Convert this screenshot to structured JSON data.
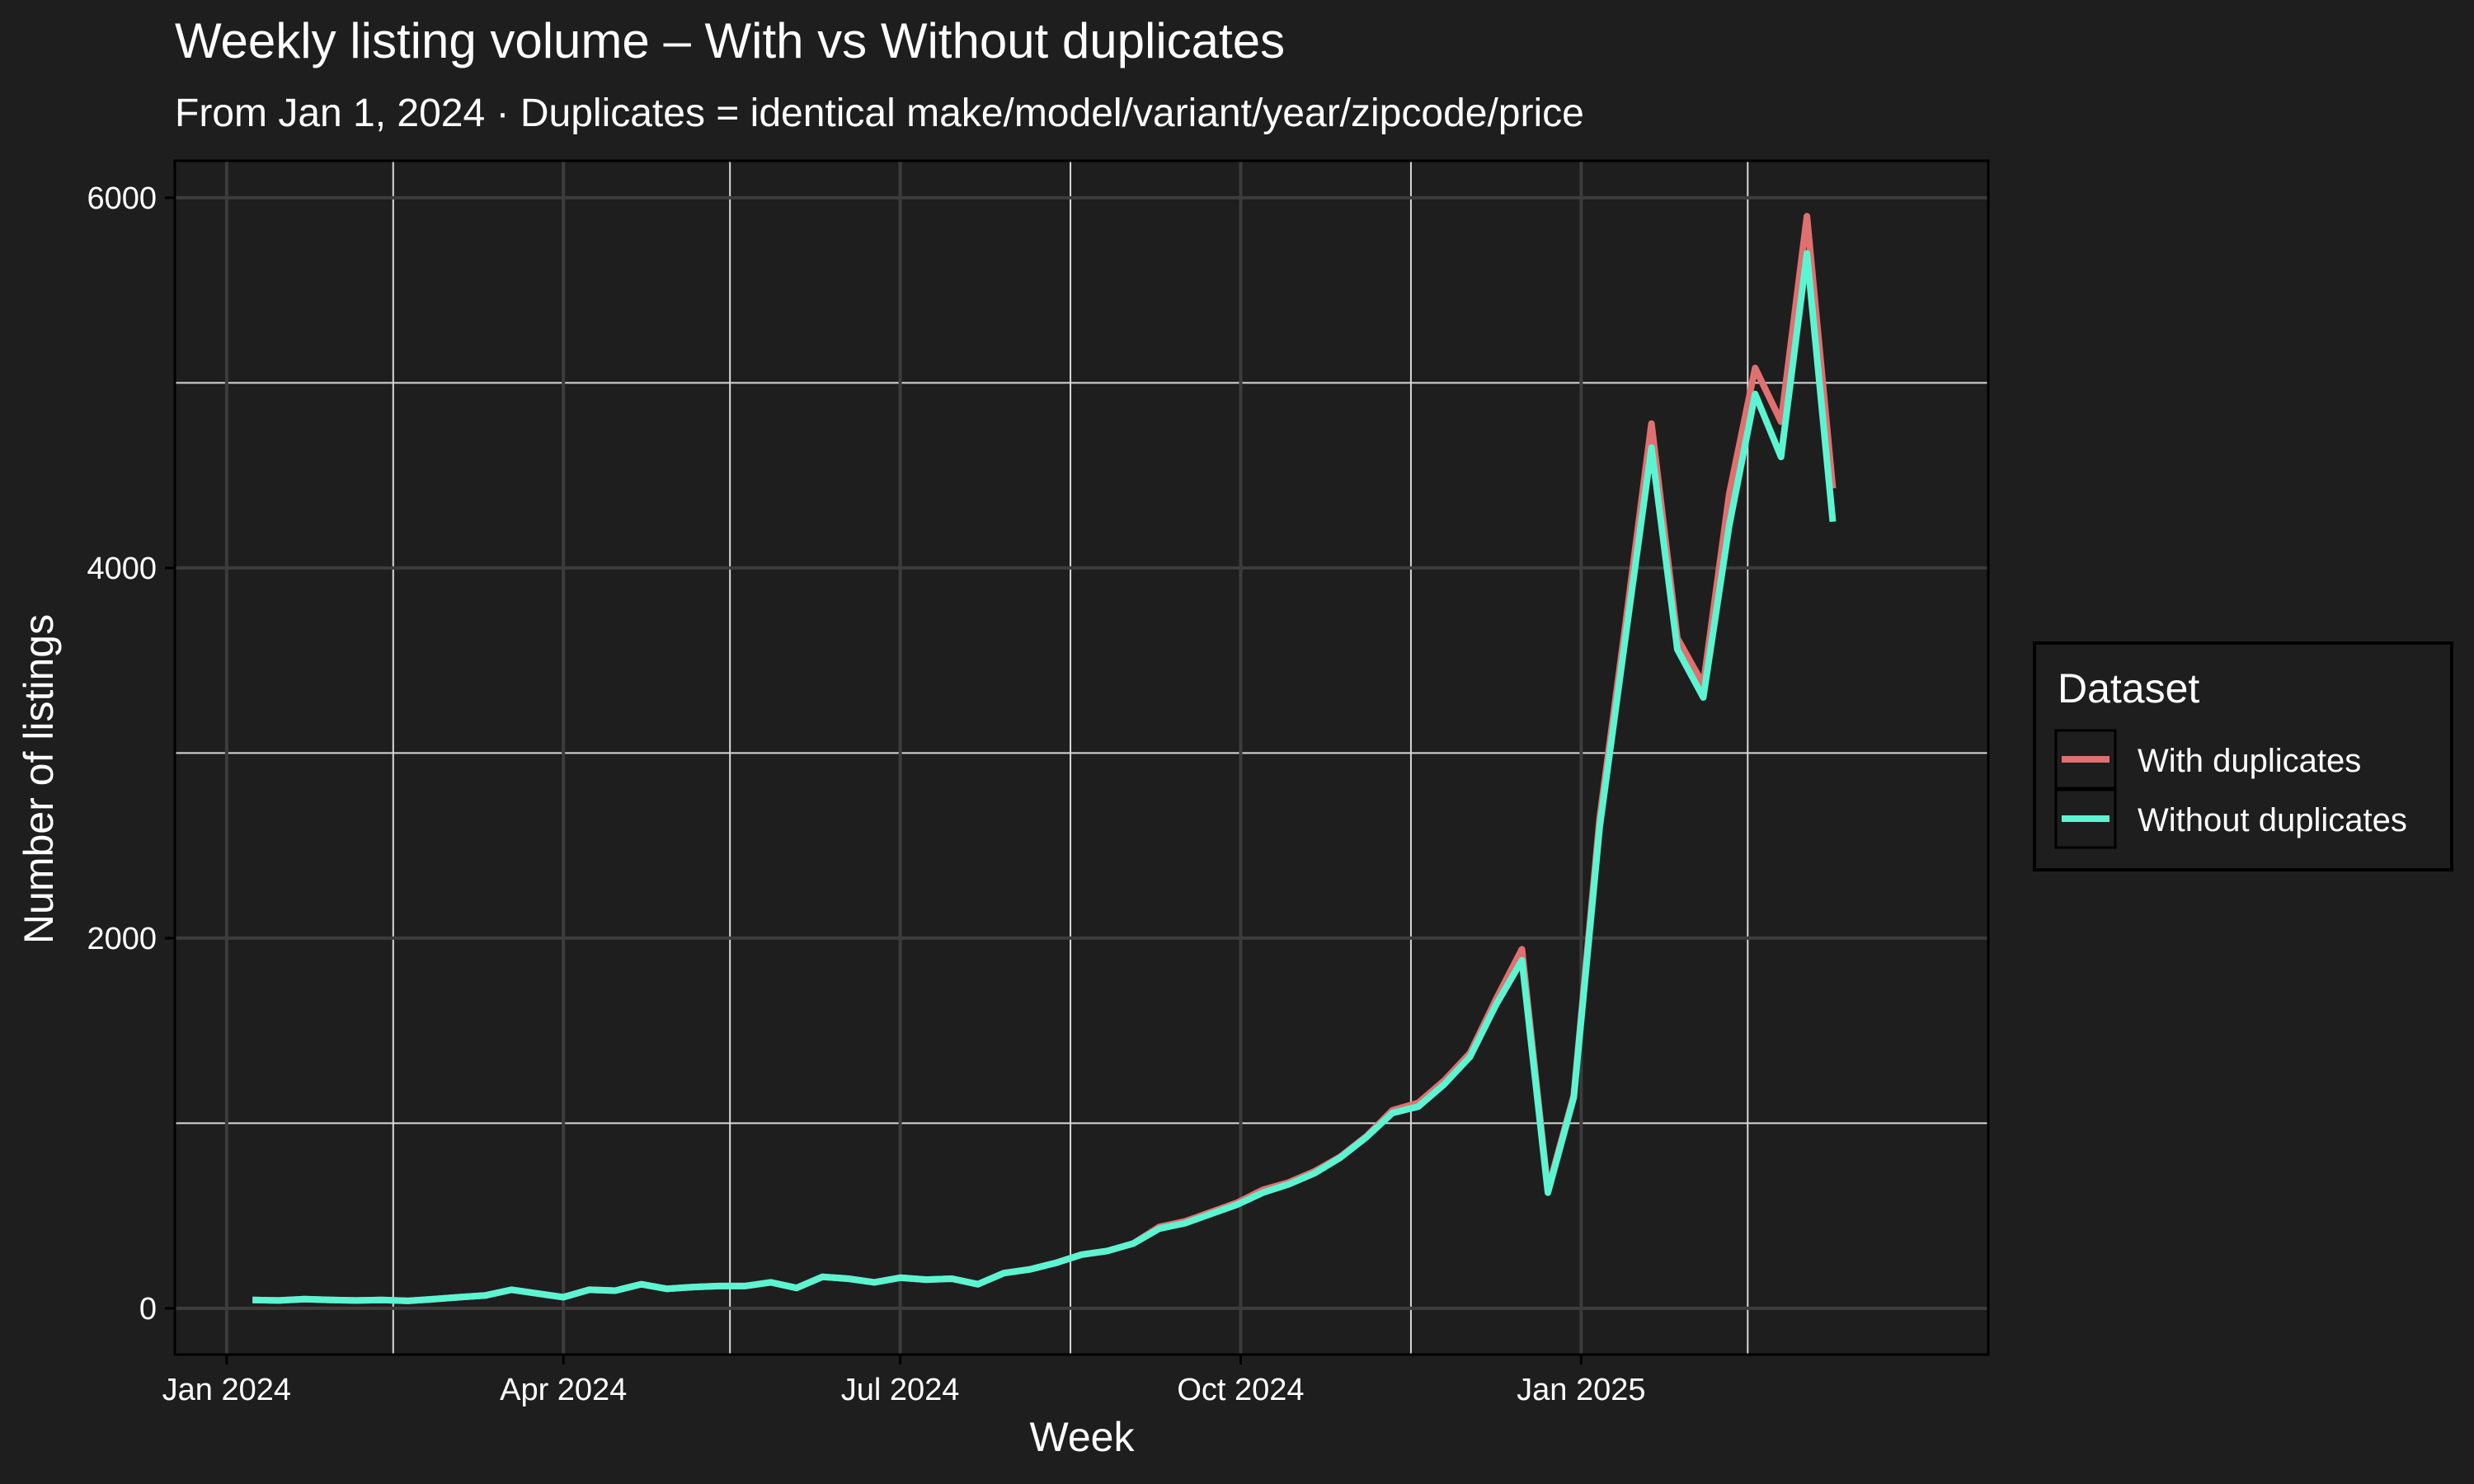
{
  "chart_data": {
    "type": "line",
    "title": "Weekly listing volume – With vs Without duplicates",
    "subtitle": "From Jan 1, 2024 · Duplicates = identical make/model/variant/year/zipcode/price",
    "xlabel": "Week",
    "ylabel": "Number of listings",
    "x_ticks": [
      {
        "date": "2024-01-01",
        "label": "Jan 2024"
      },
      {
        "date": "2024-04-01",
        "label": "Apr 2024"
      },
      {
        "date": "2024-07-01",
        "label": "Jul 2024"
      },
      {
        "date": "2024-10-01",
        "label": "Oct 2024"
      },
      {
        "date": "2025-01-01",
        "label": "Jan 2025"
      }
    ],
    "x_minor_ticks": [
      "2024-02-15",
      "2024-05-16",
      "2024-08-16",
      "2024-11-16",
      "2025-02-15"
    ],
    "xlim": [
      "2023-12-18",
      "2025-04-21"
    ],
    "ylim": [
      -250,
      6200
    ],
    "y_ticks": [
      0,
      2000,
      4000,
      6000
    ],
    "y_minor_ticks": [
      1000,
      3000,
      5000
    ],
    "grid": true,
    "legend": {
      "title": "Dataset",
      "position": "right"
    },
    "colors": {
      "background": "#1e1e1e",
      "panel": "#1e1e1e",
      "grid_major": "#3c3c3c",
      "grid_minor": "#d9d9d9",
      "text": "#ffffff"
    },
    "x": [
      "2024-01-08",
      "2024-01-15",
      "2024-01-22",
      "2024-01-29",
      "2024-02-05",
      "2024-02-12",
      "2024-02-19",
      "2024-02-26",
      "2024-03-04",
      "2024-03-11",
      "2024-03-18",
      "2024-03-25",
      "2024-04-01",
      "2024-04-08",
      "2024-04-15",
      "2024-04-22",
      "2024-04-29",
      "2024-05-06",
      "2024-05-13",
      "2024-05-20",
      "2024-05-27",
      "2024-06-03",
      "2024-06-10",
      "2024-06-17",
      "2024-06-24",
      "2024-07-01",
      "2024-07-08",
      "2024-07-15",
      "2024-07-22",
      "2024-07-29",
      "2024-08-05",
      "2024-08-12",
      "2024-08-19",
      "2024-08-26",
      "2024-09-02",
      "2024-09-09",
      "2024-09-16",
      "2024-09-23",
      "2024-09-30",
      "2024-10-07",
      "2024-10-14",
      "2024-10-21",
      "2024-10-28",
      "2024-11-04",
      "2024-11-11",
      "2024-11-18",
      "2024-11-25",
      "2024-12-02",
      "2024-12-09",
      "2024-12-16",
      "2024-12-23",
      "2024-12-30",
      "2025-01-06",
      "2025-01-13",
      "2025-01-20",
      "2025-01-27",
      "2025-02-03",
      "2025-02-10",
      "2025-02-17",
      "2025-02-24",
      "2025-03-03",
      "2025-03-10"
    ],
    "series": [
      {
        "name": "With duplicates",
        "color": "#e07070",
        "values": [
          45,
          42,
          50,
          45,
          42,
          45,
          40,
          50,
          60,
          70,
          100,
          80,
          60,
          100,
          95,
          130,
          105,
          115,
          120,
          120,
          140,
          110,
          170,
          160,
          140,
          165,
          155,
          160,
          130,
          190,
          210,
          245,
          290,
          310,
          350,
          440,
          470,
          520,
          570,
          640,
          680,
          740,
          820,
          930,
          1070,
          1110,
          1230,
          1380,
          1670,
          1940,
          640,
          1150,
          2650,
          3700,
          4780,
          3620,
          3370,
          4400,
          5080,
          4790,
          5900,
          4430
        ]
      },
      {
        "name": "Without duplicates",
        "color": "#5cf5d2",
        "values": [
          45,
          42,
          50,
          45,
          42,
          45,
          40,
          50,
          60,
          70,
          100,
          80,
          60,
          100,
          95,
          130,
          105,
          115,
          120,
          120,
          140,
          110,
          170,
          160,
          140,
          165,
          155,
          160,
          130,
          190,
          210,
          245,
          290,
          310,
          350,
          430,
          460,
          510,
          560,
          625,
          670,
          730,
          815,
          925,
          1055,
          1090,
          1210,
          1360,
          1640,
          1880,
          625,
          1140,
          2600,
          3630,
          4650,
          3560,
          3300,
          4230,
          4940,
          4600,
          5700,
          4250
        ]
      }
    ]
  }
}
